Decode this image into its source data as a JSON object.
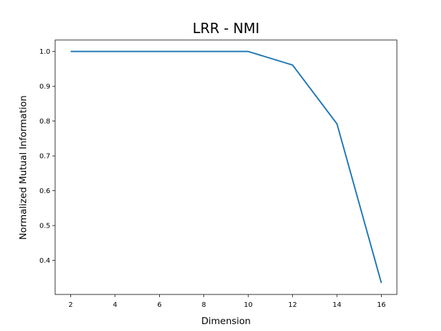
{
  "chart_data": {
    "type": "line",
    "title": "LRR - NMI",
    "xlabel": "Dimension",
    "ylabel": "Normalized Mutual Information",
    "x": [
      2,
      4,
      6,
      8,
      10,
      12,
      14,
      16
    ],
    "series": [
      {
        "values": [
          1.0,
          1.0,
          1.0,
          1.0,
          1.0,
          0.961,
          0.792,
          0.335
        ],
        "color": "#1f77b4"
      }
    ],
    "xticks": [
      2,
      4,
      6,
      8,
      10,
      12,
      14,
      16
    ],
    "yticks": [
      0.4,
      0.5,
      0.6,
      0.7,
      0.8,
      0.9,
      1.0
    ],
    "xtick_labels": [
      "2",
      "4",
      "6",
      "8",
      "10",
      "12",
      "14",
      "16"
    ],
    "ytick_labels": [
      "0.4",
      "0.5",
      "0.6",
      "0.7",
      "0.8",
      "0.9",
      "1.0"
    ],
    "xlim": [
      1.3,
      16.7
    ],
    "ylim": [
      0.302,
      1.033
    ],
    "grid": false,
    "legend": "none"
  }
}
